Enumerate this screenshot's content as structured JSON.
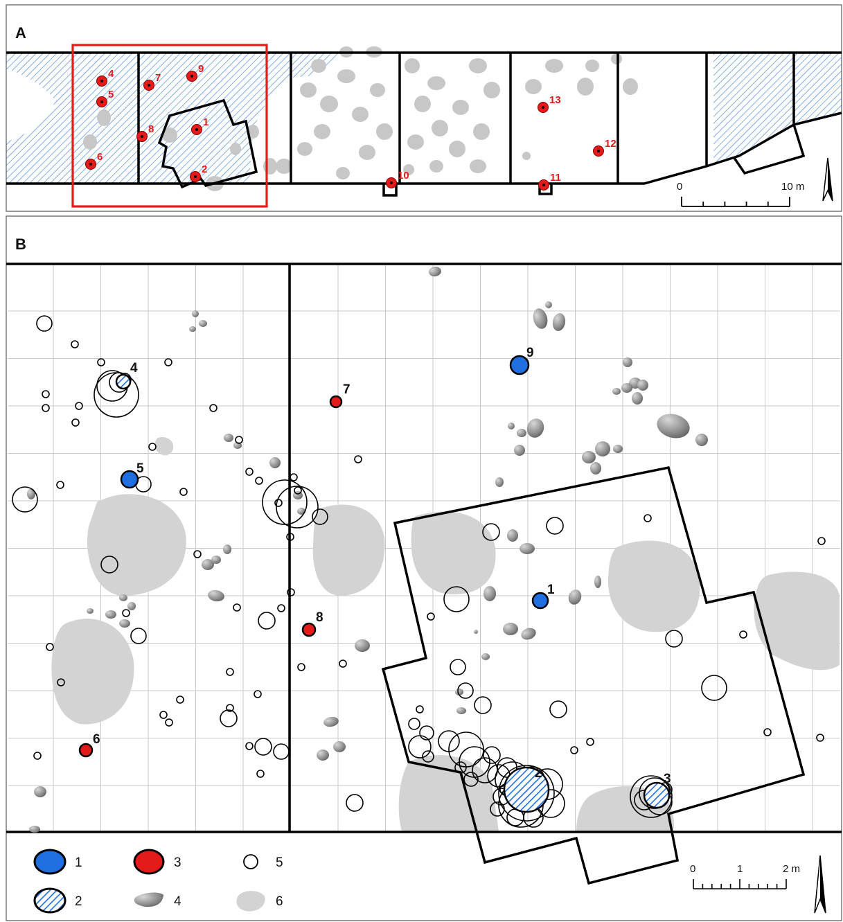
{
  "panels": {
    "a": {
      "label": "A"
    },
    "b": {
      "label": "B"
    }
  },
  "panel_a": {
    "points": [
      {
        "label": "1"
      },
      {
        "label": "2"
      },
      {
        "label": "4"
      },
      {
        "label": "5"
      },
      {
        "label": "6"
      },
      {
        "label": "7"
      },
      {
        "label": "8"
      },
      {
        "label": "9"
      },
      {
        "label": "10"
      },
      {
        "label": "11"
      },
      {
        "label": "12"
      },
      {
        "label": "13"
      }
    ],
    "scale": {
      "start": "0",
      "end": "10 m",
      "minor_ticks": 5
    }
  },
  "panel_b": {
    "points": [
      {
        "label": "1",
        "category": 1
      },
      {
        "label": "2",
        "category": 2
      },
      {
        "label": "3",
        "category": 2
      },
      {
        "label": "4",
        "category": 2
      },
      {
        "label": "5",
        "category": 1
      },
      {
        "label": "6",
        "category": 3
      },
      {
        "label": "7",
        "category": 3
      },
      {
        "label": "8",
        "category": 3
      },
      {
        "label": "9",
        "category": 1
      }
    ],
    "scale": {
      "start": "0",
      "mid": "1",
      "end": "2 m",
      "minor_ticks": 10
    },
    "legend": [
      {
        "label": "1",
        "symbol": "blue-filled-circle"
      },
      {
        "label": "2",
        "symbol": "blue-hatched-circle"
      },
      {
        "label": "3",
        "symbol": "red-filled-circle"
      },
      {
        "label": "4",
        "symbol": "grey-stone"
      },
      {
        "label": "5",
        "symbol": "open-circle"
      },
      {
        "label": "6",
        "symbol": "light-grey-blob"
      }
    ]
  },
  "colors": {
    "blue": "#1f6fe0",
    "red": "#e51b1b",
    "grey_blob": "#d3d3d3",
    "hatch": "#4a8be0",
    "grid": "#c8c8c8"
  }
}
